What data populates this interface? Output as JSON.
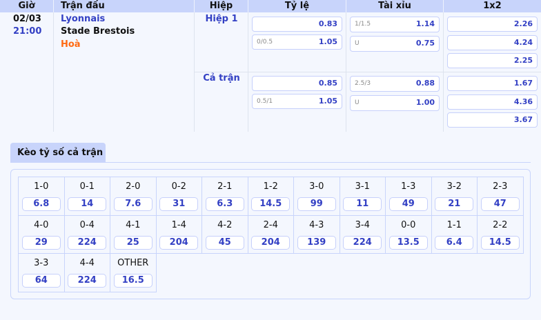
{
  "header": {
    "time": "Giờ",
    "match": "Trận đấu",
    "half": "Hiệp",
    "handicap": "Tỷ lệ",
    "overunder": "Tài xỉu",
    "x12": "1x2"
  },
  "match": {
    "date": "02/03",
    "time": "21:00",
    "home": "Lyonnais",
    "away": "Stade Brestois",
    "draw": "Hoà"
  },
  "periods": [
    {
      "label": "Hiệp 1",
      "handicap": [
        {
          "line": "",
          "odds": "0.83"
        },
        {
          "line": "0/0.5",
          "odds": "1.05"
        }
      ],
      "overunder": [
        {
          "line": "1/1.5",
          "odds": "1.14"
        },
        {
          "line": "U",
          "odds": "0.75"
        }
      ],
      "x12": [
        "2.26",
        "4.24",
        "2.25"
      ]
    },
    {
      "label": "Cả trận",
      "handicap": [
        {
          "line": "",
          "odds": "0.85"
        },
        {
          "line": "0.5/1",
          "odds": "1.05"
        }
      ],
      "overunder": [
        {
          "line": "2.5/3",
          "odds": "0.88"
        },
        {
          "line": "U",
          "odds": "1.00"
        }
      ],
      "x12": [
        "1.67",
        "4.36",
        "3.67"
      ]
    }
  ],
  "correct_score": {
    "tab": "Kèo tỷ số cả trận",
    "items": [
      {
        "s": "1-0",
        "o": "6.8"
      },
      {
        "s": "0-1",
        "o": "14"
      },
      {
        "s": "2-0",
        "o": "7.6"
      },
      {
        "s": "0-2",
        "o": "31"
      },
      {
        "s": "2-1",
        "o": "6.3"
      },
      {
        "s": "1-2",
        "o": "14.5"
      },
      {
        "s": "3-0",
        "o": "99"
      },
      {
        "s": "3-1",
        "o": "11"
      },
      {
        "s": "1-3",
        "o": "49"
      },
      {
        "s": "3-2",
        "o": "21"
      },
      {
        "s": "2-3",
        "o": "47"
      },
      {
        "s": "4-0",
        "o": "29"
      },
      {
        "s": "0-4",
        "o": "224"
      },
      {
        "s": "4-1",
        "o": "25"
      },
      {
        "s": "1-4",
        "o": "204"
      },
      {
        "s": "4-2",
        "o": "45"
      },
      {
        "s": "2-4",
        "o": "204"
      },
      {
        "s": "4-3",
        "o": "139"
      },
      {
        "s": "3-4",
        "o": "224"
      },
      {
        "s": "0-0",
        "o": "13.5"
      },
      {
        "s": "1-1",
        "o": "6.4"
      },
      {
        "s": "2-2",
        "o": "14.5"
      },
      {
        "s": "3-3",
        "o": "64"
      },
      {
        "s": "4-4",
        "o": "224"
      },
      {
        "s": "OTHER",
        "o": "16.5"
      }
    ]
  },
  "colors": {
    "header_bg": "#c8d4fb",
    "odds": "#3340c4",
    "home": "#3340c4",
    "draw": "#ff6a13"
  }
}
